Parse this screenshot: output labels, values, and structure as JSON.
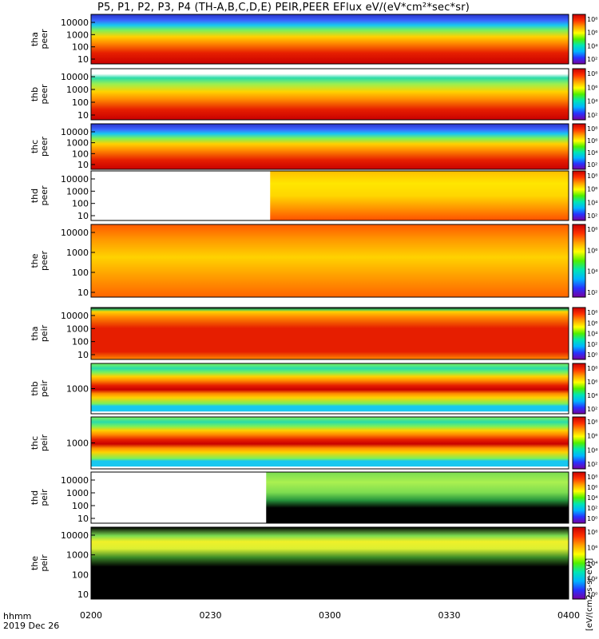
{
  "title": "P5, P1, P2, P3, P4 (TH-A,B,C,D,E) PEIR,PEER EFlux eV/(eV*cm²*sec*sr)",
  "colorbar_label": "[eV/(cm2-s-sr-eV)]",
  "time_axis": {
    "label_line1": "hhmm",
    "label_line2": "2019 Dec 26",
    "ticks": [
      "0200",
      "0230",
      "0300",
      "0330",
      "0400"
    ]
  },
  "chart_data": {
    "type": "heatmap",
    "x_range": [
      "0200",
      "0400"
    ],
    "panels": [
      {
        "name": "tha peer",
        "ylabel": [
          "tha",
          "peer"
        ],
        "ytick_labels": [
          "10000",
          "1000",
          "100",
          "10"
        ],
        "cb_labels": [
          "10⁸",
          "10⁶",
          "10⁴",
          "10²"
        ],
        "gap": null,
        "bands": [
          {
            "f": 0,
            "c": "#c80000"
          },
          {
            "f": 0.22,
            "c": "#e61e00"
          },
          {
            "f": 0.42,
            "c": "#ff8c00"
          },
          {
            "f": 0.55,
            "c": "#ffd200"
          },
          {
            "f": 0.68,
            "c": "#7cf05a"
          },
          {
            "f": 0.78,
            "c": "#18c8f0"
          },
          {
            "f": 0.88,
            "c": "#3c64ff"
          },
          {
            "f": 1,
            "c": "#2832c8"
          }
        ]
      },
      {
        "name": "thb peer",
        "ylabel": [
          "thb",
          "peer"
        ],
        "ytick_labels": [
          "10000",
          "1000",
          "100",
          "10"
        ],
        "cb_labels": [
          "10⁸",
          "10⁶",
          "10⁴",
          "10²"
        ],
        "gap": null,
        "bands": [
          {
            "f": 0,
            "c": "#c80000"
          },
          {
            "f": 0.2,
            "c": "#e61e00"
          },
          {
            "f": 0.4,
            "c": "#ff8c00"
          },
          {
            "f": 0.55,
            "c": "#ffd200"
          },
          {
            "f": 0.7,
            "c": "#9bf050"
          },
          {
            "f": 0.82,
            "c": "#2adcaa"
          },
          {
            "f": 0.9,
            "c": "#ffffff"
          },
          {
            "f": 1,
            "c": "#ffffff"
          }
        ]
      },
      {
        "name": "thc peer",
        "ylabel": [
          "thc",
          "peer"
        ],
        "ytick_labels": [
          "10000",
          "1000",
          "100",
          "10"
        ],
        "cb_labels": [
          "10⁸",
          "10⁶",
          "10⁴",
          "10²"
        ],
        "gap": null,
        "bands": [
          {
            "f": 0,
            "c": "#c80000"
          },
          {
            "f": 0.2,
            "c": "#e61e00"
          },
          {
            "f": 0.42,
            "c": "#ff8c00"
          },
          {
            "f": 0.56,
            "c": "#ffd200"
          },
          {
            "f": 0.68,
            "c": "#7cf05a"
          },
          {
            "f": 0.78,
            "c": "#18c8f0"
          },
          {
            "f": 0.88,
            "c": "#3c64ff"
          },
          {
            "f": 1,
            "c": "#2832c8"
          }
        ]
      },
      {
        "name": "thd peer",
        "ylabel": [
          "thd",
          "peer"
        ],
        "ytick_labels": [
          "10000",
          "1000",
          "100",
          "10"
        ],
        "cb_labels": [
          "10⁸",
          "10⁶",
          "10⁴",
          "10²"
        ],
        "gap": {
          "from": "0200",
          "to": "0245"
        },
        "bands": [
          {
            "f": 0,
            "c": "#ff5000"
          },
          {
            "f": 0.25,
            "c": "#ff9600"
          },
          {
            "f": 0.5,
            "c": "#ffd700"
          },
          {
            "f": 0.75,
            "c": "#ffe600"
          },
          {
            "f": 1,
            "c": "#ffbe00"
          }
        ]
      },
      {
        "name": "the peer",
        "ylabel": [
          "the",
          "peer"
        ],
        "ytick_labels": [
          "10000",
          "1000",
          "100",
          "10"
        ],
        "cb_labels": [
          "10⁸",
          "10⁶",
          "10⁴",
          "10²"
        ],
        "gap": null,
        "bands": [
          {
            "f": 0,
            "c": "#ff6400"
          },
          {
            "f": 0.3,
            "c": "#ffa000"
          },
          {
            "f": 0.55,
            "c": "#ffd200"
          },
          {
            "f": 0.8,
            "c": "#ff9600"
          },
          {
            "f": 1,
            "c": "#ff5a00"
          }
        ]
      },
      {
        "name": "tha peir",
        "ylabel": [
          "tha",
          "peir"
        ],
        "ytick_labels": [
          "10000",
          "1000",
          "100",
          "10"
        ],
        "cb_labels": [
          "10⁸",
          "10⁶",
          "10⁴",
          "10²",
          "10⁰"
        ],
        "gap": null,
        "bands": [
          {
            "f": 0,
            "c": "#ff8c00"
          },
          {
            "f": 0.15,
            "c": "#e61e00"
          },
          {
            "f": 0.6,
            "c": "#e61e00"
          },
          {
            "f": 0.82,
            "c": "#ff8c00"
          },
          {
            "f": 0.92,
            "c": "#ffd200"
          },
          {
            "f": 0.96,
            "c": "#46c864"
          },
          {
            "f": 1,
            "c": "#000000"
          }
        ]
      },
      {
        "name": "thb peir",
        "ylabel": [
          "thb",
          "peir"
        ],
        "ytick_labels": [
          "1000"
        ],
        "cb_labels": [
          "10⁸",
          "10⁶",
          "10⁴",
          "10²"
        ],
        "gap": null,
        "bands": [
          {
            "f": 0,
            "c": "#ffffff"
          },
          {
            "f": 0.04,
            "c": "#ffffff"
          },
          {
            "f": 0.05,
            "c": "#18c8f0"
          },
          {
            "f": 0.15,
            "c": "#18c8f0"
          },
          {
            "f": 0.2,
            "c": "#7cf05a"
          },
          {
            "f": 0.32,
            "c": "#ffd200"
          },
          {
            "f": 0.4,
            "c": "#ff8c00"
          },
          {
            "f": 0.48,
            "c": "#c80000"
          },
          {
            "f": 0.56,
            "c": "#e61e00"
          },
          {
            "f": 0.66,
            "c": "#ff8c00"
          },
          {
            "f": 0.74,
            "c": "#ffd200"
          },
          {
            "f": 0.82,
            "c": "#7cf05a"
          },
          {
            "f": 0.9,
            "c": "#2adcaa"
          },
          {
            "f": 1,
            "c": "#7cf05a"
          }
        ]
      },
      {
        "name": "thc peir",
        "ylabel": [
          "thc",
          "peir"
        ],
        "ytick_labels": [
          "1000"
        ],
        "cb_labels": [
          "10⁸",
          "10⁶",
          "10⁴",
          "10²"
        ],
        "gap": null,
        "bands": [
          {
            "f": 0,
            "c": "#ffffff"
          },
          {
            "f": 0.04,
            "c": "#ffffff"
          },
          {
            "f": 0.05,
            "c": "#18c8f0"
          },
          {
            "f": 0.15,
            "c": "#18c8f0"
          },
          {
            "f": 0.2,
            "c": "#7cf05a"
          },
          {
            "f": 0.32,
            "c": "#ffd200"
          },
          {
            "f": 0.4,
            "c": "#ff8c00"
          },
          {
            "f": 0.48,
            "c": "#c80000"
          },
          {
            "f": 0.56,
            "c": "#e61e00"
          },
          {
            "f": 0.66,
            "c": "#ff8c00"
          },
          {
            "f": 0.74,
            "c": "#ffd200"
          },
          {
            "f": 0.82,
            "c": "#7cf05a"
          },
          {
            "f": 0.9,
            "c": "#2adcaa"
          },
          {
            "f": 1,
            "c": "#7cf05a"
          }
        ]
      },
      {
        "name": "thd peir",
        "ylabel": [
          "thd",
          "peir"
        ],
        "ytick_labels": [
          "10000",
          "1000",
          "100",
          "10"
        ],
        "cb_labels": [
          "10⁸",
          "10⁶",
          "10⁴",
          "10²",
          "10⁰"
        ],
        "gap": {
          "from": "0200",
          "to": "0244"
        },
        "bands": [
          {
            "f": 0,
            "c": "#000000"
          },
          {
            "f": 0.3,
            "c": "#000000"
          },
          {
            "f": 0.45,
            "c": "#28963c"
          },
          {
            "f": 0.6,
            "c": "#7cdc50"
          },
          {
            "f": 0.8,
            "c": "#aaf050"
          },
          {
            "f": 1,
            "c": "#78dc50"
          }
        ]
      },
      {
        "name": "the peir",
        "ylabel": [
          "the",
          "peir"
        ],
        "ytick_labels": [
          "10000",
          "1000",
          "100",
          "10"
        ],
        "cb_labels": [
          "10⁸",
          "10⁶",
          "10⁴",
          "10²",
          "10⁰"
        ],
        "gap": null,
        "bands": [
          {
            "f": 0,
            "c": "#000000"
          },
          {
            "f": 0.45,
            "c": "#000000"
          },
          {
            "f": 0.58,
            "c": "#3c8c28"
          },
          {
            "f": 0.7,
            "c": "#dcf032"
          },
          {
            "f": 0.8,
            "c": "#f0f028"
          },
          {
            "f": 0.88,
            "c": "#7cdc50"
          },
          {
            "f": 1,
            "c": "#000000"
          }
        ]
      }
    ]
  }
}
